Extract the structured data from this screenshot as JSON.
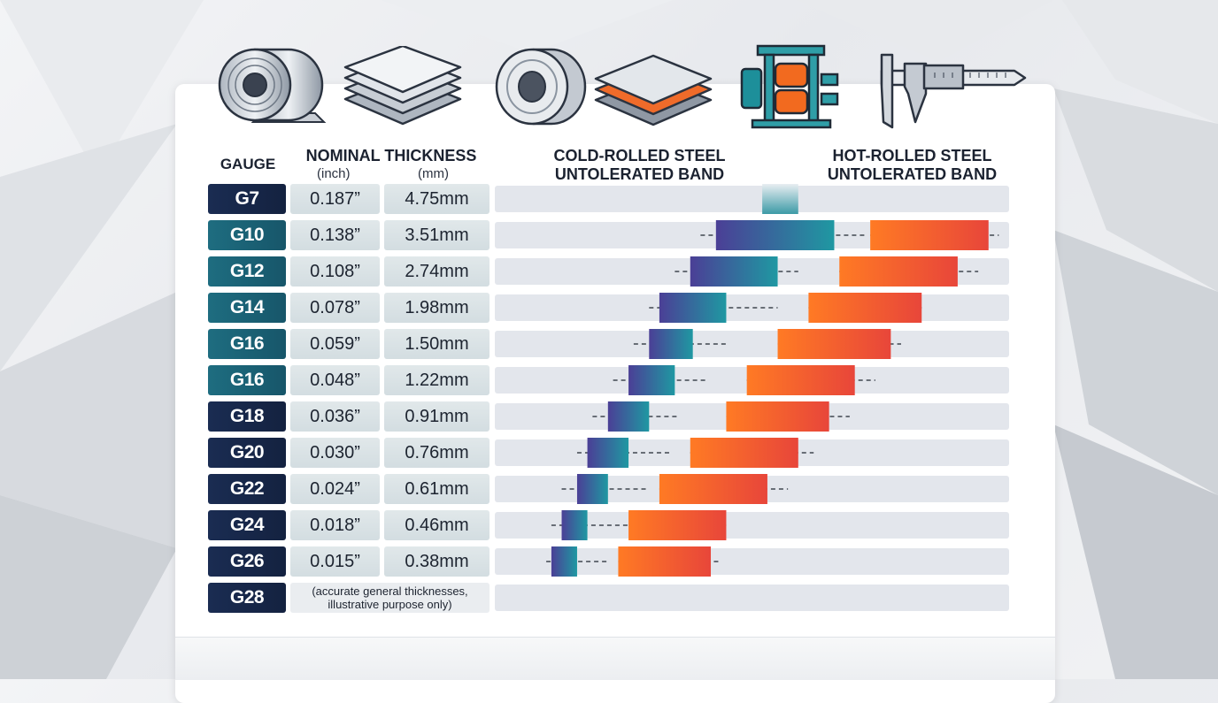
{
  "headers": {
    "gauge": "GAUGE",
    "nominal": "NOMINAL THICKNESS",
    "inch": "(inch)",
    "mm": "(mm)",
    "cold_line1": "COLD-ROLLED STEEL",
    "cold_line2": "UNTOLERATED BAND",
    "hot_line1": "HOT-ROLLED STEEL",
    "hot_line2": "UNTOLERATED BAND"
  },
  "icons": [
    "steel-coil-icon",
    "stacked-sheets-icon",
    "steel-ring-icon",
    "layered-plate-icon",
    "rolling-mill-icon",
    "caliper-icon"
  ],
  "colors": {
    "gauge_dark": "#1a2c52",
    "gauge_teal": "#1e6d80",
    "cold_start": "#4b3f96",
    "cold_end": "#1f98a2",
    "hot_start": "#ff7a24",
    "hot_end": "#e8463a",
    "track": "#e3e6ec"
  },
  "rows": [
    {
      "gauge": "G7",
      "inch": "0.187”",
      "mm": "4.75mm",
      "style": "dark"
    },
    {
      "gauge": "G10",
      "inch": "0.138”",
      "mm": "3.51mm",
      "style": "teal"
    },
    {
      "gauge": "G12",
      "inch": "0.108”",
      "mm": "2.74mm",
      "style": "teal"
    },
    {
      "gauge": "G14",
      "inch": "0.078”",
      "mm": "1.98mm",
      "style": "teal"
    },
    {
      "gauge": "G16",
      "inch": "0.059”",
      "mm": "1.50mm",
      "style": "teal"
    },
    {
      "gauge": "G16",
      "inch": "0.048”",
      "mm": "1.22mm",
      "style": "teal"
    },
    {
      "gauge": "G18",
      "inch": "0.036”",
      "mm": "0.91mm",
      "style": "dark"
    },
    {
      "gauge": "G20",
      "inch": "0.030”",
      "mm": "0.76mm",
      "style": "dark"
    },
    {
      "gauge": "G22",
      "inch": "0.024”",
      "mm": "0.61mm",
      "style": "dark"
    },
    {
      "gauge": "G24",
      "inch": "0.018”",
      "mm": "0.46mm",
      "style": "dark"
    },
    {
      "gauge": "G26",
      "inch": "0.015”",
      "mm": "0.38mm",
      "style": "dark"
    },
    {
      "gauge": "G28",
      "note": "(accurate general thicknesses, illustrative purpose only)",
      "style": "dark"
    }
  ],
  "chart_data": {
    "type": "bar",
    "categories": [
      "G7",
      "G10",
      "G12",
      "G14",
      "G16",
      "G16",
      "G18",
      "G20",
      "G22",
      "G24",
      "G26",
      "G28"
    ],
    "series": [
      {
        "name": "COLD-ROLLED STEEL UNTOLERATED BAND",
        "bands": [
          [
            0.52,
            0.59
          ],
          [
            0.43,
            0.66
          ],
          [
            0.38,
            0.55
          ],
          [
            0.32,
            0.45
          ],
          [
            0.3,
            0.385
          ],
          [
            0.26,
            0.35
          ],
          [
            0.22,
            0.3
          ],
          [
            0.18,
            0.26
          ],
          [
            0.16,
            0.22
          ],
          [
            0.13,
            0.18
          ],
          [
            0.11,
            0.16
          ],
          null
        ],
        "whiskers": [
          null,
          [
            0.4,
            0.72
          ],
          [
            0.35,
            0.59
          ],
          [
            0.3,
            0.55
          ],
          [
            0.27,
            0.45
          ],
          [
            0.23,
            0.41
          ],
          [
            0.19,
            0.36
          ],
          [
            0.16,
            0.34
          ],
          [
            0.13,
            0.3
          ],
          [
            0.11,
            0.26
          ],
          [
            0.1,
            0.22
          ],
          null
        ]
      },
      {
        "name": "HOT-ROLLED STEEL UNTOLERATED BAND",
        "bands": [
          null,
          [
            0.73,
            0.96
          ],
          [
            0.67,
            0.9
          ],
          [
            0.61,
            0.83
          ],
          [
            0.55,
            0.77
          ],
          [
            0.49,
            0.7
          ],
          [
            0.45,
            0.65
          ],
          [
            0.38,
            0.59
          ],
          [
            0.32,
            0.53
          ],
          [
            0.26,
            0.45
          ],
          [
            0.24,
            0.42
          ],
          null
        ],
        "whiskers": [
          null,
          [
            0.73,
            0.98
          ],
          [
            0.67,
            0.94
          ],
          [
            0.61,
            0.83
          ],
          [
            0.55,
            0.79
          ],
          [
            0.49,
            0.74
          ],
          [
            0.45,
            0.69
          ],
          [
            0.38,
            0.62
          ],
          [
            0.32,
            0.57
          ],
          [
            0.26,
            0.45
          ],
          [
            0.24,
            0.44
          ],
          null
        ]
      }
    ],
    "xlim": [
      0,
      1
    ],
    "grid": false
  }
}
